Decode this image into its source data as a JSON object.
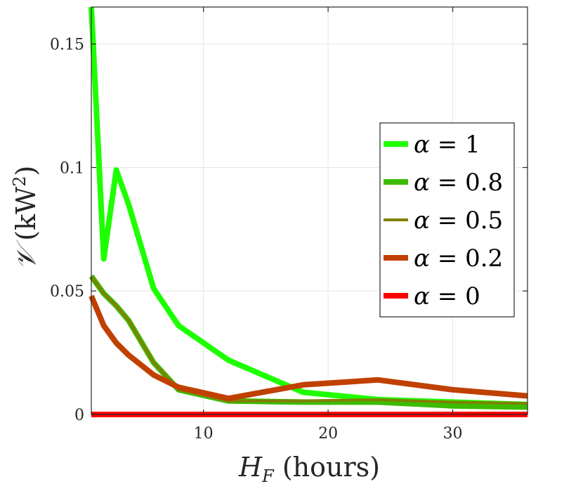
{
  "chart_data": {
    "type": "line",
    "title": "",
    "xlabel": "H_F (hours)",
    "xlabel_main": "H",
    "xlabel_sub": "F",
    "xlabel_unit": "(hours)",
    "ylabel": "V (kW²)",
    "ylabel_main": "𝒱",
    "ylabel_unit": "(kW",
    "ylabel_unit_sup": "2",
    "ylabel_unit_close": ")",
    "xlim": [
      1,
      36
    ],
    "ylim": [
      0,
      0.165
    ],
    "grid": true,
    "legend_position": "right",
    "xticks": [
      10,
      20,
      30
    ],
    "xtick_labels": [
      "10",
      "20",
      "30"
    ],
    "yticks": [
      0,
      0.05,
      0.1,
      0.15
    ],
    "ytick_labels": [
      "0",
      "0.05",
      "0.1",
      "0.15"
    ],
    "series": [
      {
        "name": "α = 1",
        "legend_value": "1",
        "color": "#1eff00",
        "width": "thick",
        "x": [
          1,
          2,
          3,
          4,
          6,
          8,
          12,
          18,
          24,
          30,
          36
        ],
        "y": [
          0.165,
          0.063,
          0.099,
          0.085,
          0.051,
          0.036,
          0.022,
          0.009,
          0.006,
          0.005,
          0.004
        ]
      },
      {
        "name": "α = 0.8",
        "legend_value": "0.8",
        "color": "#3dbb00",
        "width": "thick",
        "x": [
          1,
          2,
          3,
          4,
          6,
          8,
          12,
          18,
          24,
          30,
          36
        ],
        "y": [
          0.056,
          0.049,
          0.044,
          0.038,
          0.021,
          0.01,
          0.0055,
          0.005,
          0.005,
          0.0035,
          0.003
        ]
      },
      {
        "name": "α = 0.5",
        "legend_value": "0.5",
        "color": "#808000",
        "width": "thin",
        "x": [
          1,
          2,
          3,
          4,
          6,
          8,
          12,
          18,
          24,
          30,
          36
        ],
        "y": [
          0.056,
          0.049,
          0.044,
          0.038,
          0.021,
          0.01,
          0.0055,
          0.0055,
          0.006,
          0.005,
          0.0045
        ]
      },
      {
        "name": "α = 0.2",
        "legend_value": "0.2",
        "color": "#c04000",
        "width": "thick",
        "x": [
          1,
          2,
          3,
          4,
          6,
          8,
          12,
          18,
          24,
          30,
          36
        ],
        "y": [
          0.048,
          0.036,
          0.029,
          0.024,
          0.016,
          0.011,
          0.0065,
          0.012,
          0.014,
          0.01,
          0.0075
        ]
      },
      {
        "name": "α = 0",
        "legend_value": "0",
        "color": "#ff0000",
        "width": "thick",
        "x": [
          1,
          2,
          3,
          4,
          6,
          8,
          12,
          18,
          24,
          30,
          36
        ],
        "y": [
          0,
          0,
          0,
          0,
          0,
          0,
          0,
          0,
          0,
          0,
          0
        ]
      }
    ]
  },
  "colors": {
    "axis": "#262626",
    "grid": "#e6e6e6",
    "background": "#ffffff"
  }
}
